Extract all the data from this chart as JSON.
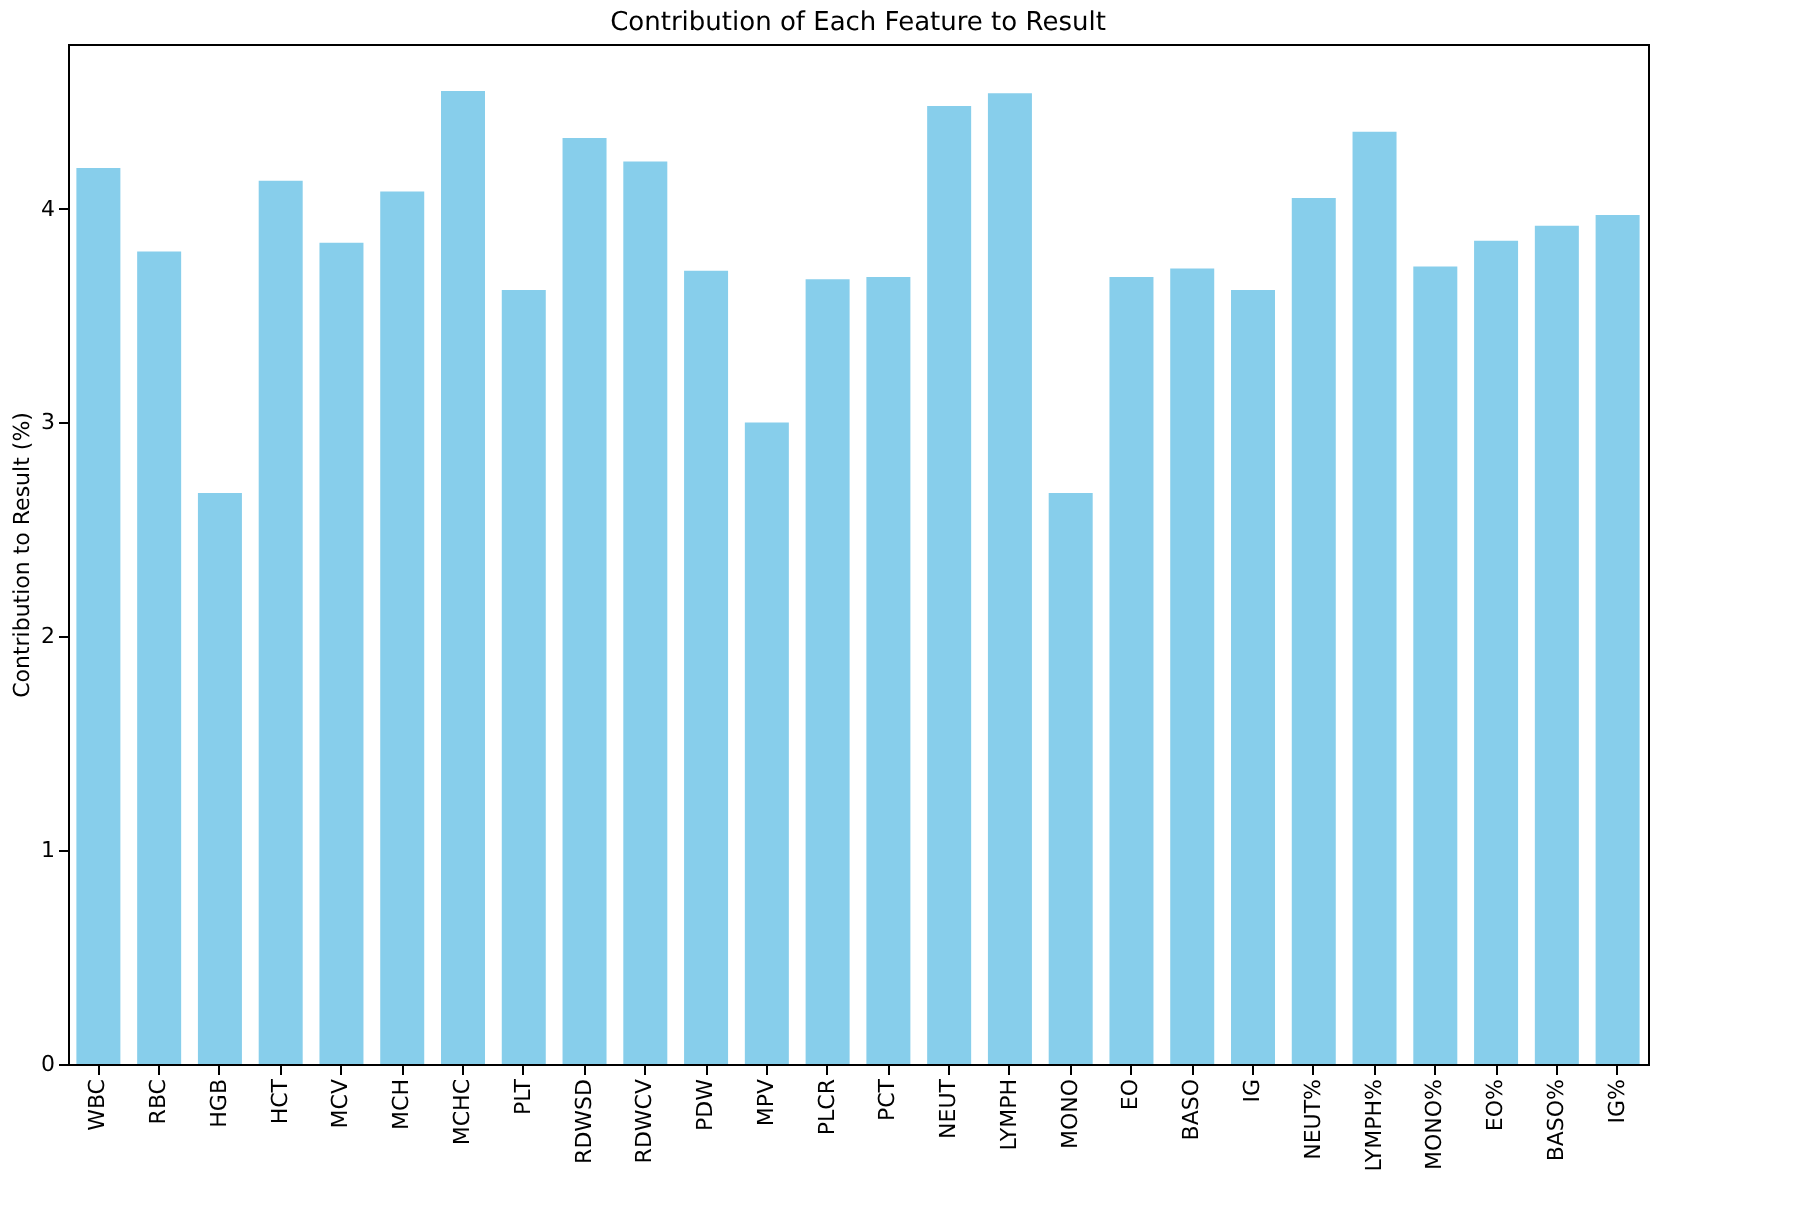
{
  "chart_data": {
    "type": "bar",
    "title": "Contribution of Each Feature to Result",
    "ylabel": "Contribution to Result (%)",
    "categories": [
      "WBC",
      "RBC",
      "HGB",
      "HCT",
      "MCV",
      "MCH",
      "MCHC",
      "PLT",
      "RDWSD",
      "RDWCV",
      "PDW",
      "MPV",
      "PLCR",
      "PCT",
      "NEUT",
      "LYMPH",
      "MONO",
      "EO",
      "BASO",
      "IG",
      "NEUT%",
      "LYMPH%",
      "MONO%",
      "EO%",
      "BASO%",
      "IG%"
    ],
    "values": [
      4.19,
      3.8,
      2.67,
      4.13,
      3.84,
      4.08,
      4.55,
      3.62,
      4.33,
      4.22,
      3.71,
      3.0,
      3.67,
      3.68,
      4.48,
      4.54,
      2.67,
      3.68,
      3.72,
      3.62,
      4.05,
      4.36,
      3.73,
      3.85,
      3.92,
      3.97
    ],
    "color": "#87ceeb",
    "ylim": [
      0,
      4.77
    ],
    "yticks": [
      0,
      1,
      2,
      3,
      4
    ],
    "grid": false
  }
}
